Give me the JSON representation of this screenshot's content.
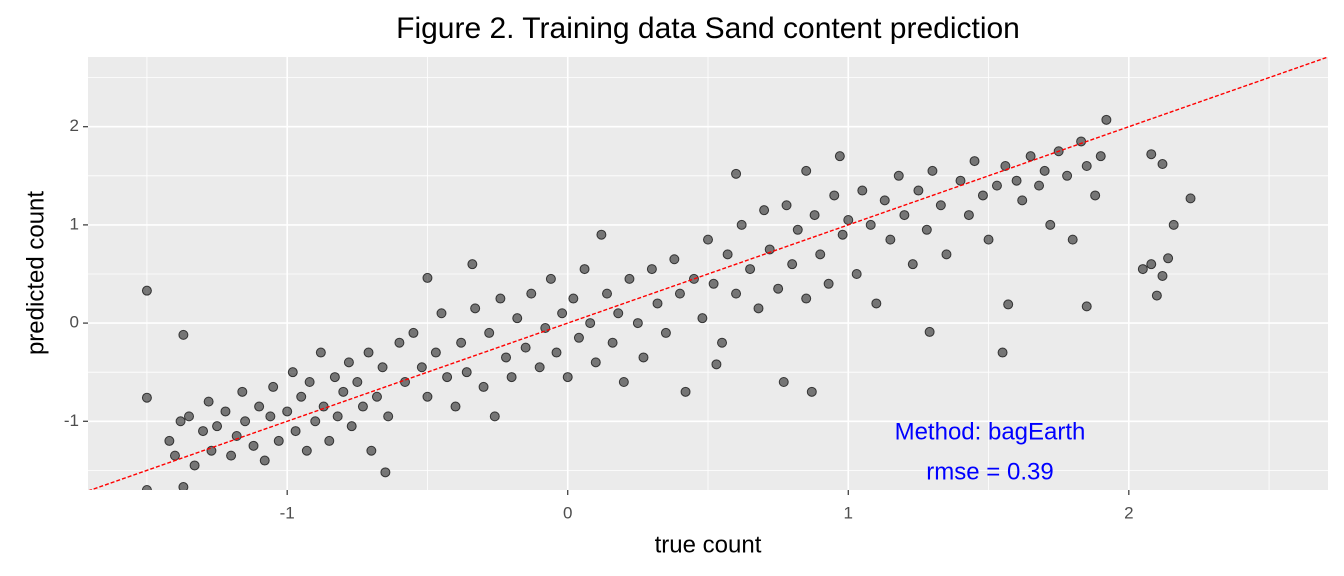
{
  "chart_data": {
    "type": "scatter",
    "title": "Figure 2.  Training data Sand content prediction",
    "xlabel": "true count",
    "ylabel": "predicted count",
    "xlim": [
      -1.71,
      2.71
    ],
    "ylim": [
      -1.7,
      2.71
    ],
    "xticks": [
      -1,
      0,
      1,
      2
    ],
    "yticks": [
      -1,
      0,
      1,
      2
    ],
    "x_minor_grid": [
      -1.5,
      -0.5,
      0.5,
      1.5,
      2.5
    ],
    "y_minor_grid": [
      -1.5,
      -0.5,
      0.5,
      1.5,
      2.5
    ],
    "grid": true,
    "color": "#000000",
    "reference_line": {
      "slope": 1,
      "intercept": 0,
      "color": "#ff0000"
    },
    "annotations": [
      "Method: bagEarth",
      "rmse = 0.39"
    ],
    "annotation_color": "#0000ff",
    "x": [
      -1.42,
      -1.4,
      -1.38,
      -1.35,
      -1.33,
      -1.3,
      -1.28,
      -1.27,
      -1.25,
      -1.22,
      -1.2,
      -1.18,
      -1.16,
      -1.15,
      -1.12,
      -1.1,
      -1.08,
      -1.06,
      -1.05,
      -1.03,
      -1.0,
      -0.98,
      -0.97,
      -0.95,
      -0.93,
      -0.92,
      -0.9,
      -0.88,
      -0.87,
      -0.85,
      -0.83,
      -0.82,
      -0.8,
      -0.78,
      -0.77,
      -0.75,
      -0.73,
      -0.71,
      -0.7,
      -0.68,
      -0.66,
      -0.64,
      -0.6,
      -0.58,
      -0.55,
      -0.52,
      -0.5,
      -0.47,
      -0.45,
      -0.43,
      -0.4,
      -0.38,
      -0.36,
      -0.33,
      -0.3,
      -0.28,
      -0.26,
      -0.24,
      -0.22,
      -0.2,
      -0.18,
      -0.15,
      -0.13,
      -0.1,
      -0.08,
      -0.06,
      -0.04,
      -0.02,
      0.0,
      0.02,
      0.04,
      0.06,
      0.08,
      0.1,
      0.12,
      0.14,
      0.16,
      0.18,
      0.2,
      0.22,
      0.25,
      0.27,
      0.3,
      0.32,
      0.35,
      0.38,
      0.4,
      0.42,
      0.45,
      0.48,
      0.5,
      0.52,
      0.55,
      0.57,
      0.6,
      0.62,
      0.65,
      0.68,
      0.7,
      0.72,
      0.75,
      0.78,
      0.8,
      0.82,
      0.85,
      0.88,
      0.9,
      0.93,
      0.95,
      0.98,
      1.0,
      1.03,
      1.05,
      1.08,
      1.1,
      1.13,
      1.15,
      1.18,
      1.2,
      1.23,
      1.25,
      1.28,
      1.3,
      1.33,
      1.35,
      1.4,
      1.43,
      1.45,
      1.48,
      1.5,
      1.53,
      1.56,
      1.6,
      1.62,
      1.65,
      1.68,
      1.7,
      1.72,
      1.75,
      1.78,
      1.8,
      1.83,
      1.85,
      1.88,
      1.9,
      -1.5,
      -1.5,
      -1.5,
      -1.37,
      -1.37,
      -0.65,
      0.6,
      0.85,
      0.97,
      1.92,
      2.08,
      2.12,
      2.22,
      2.16,
      2.05,
      2.1,
      2.12,
      2.08,
      2.14,
      1.55,
      1.85,
      1.29,
      1.57,
      0.77,
      0.87,
      0.53,
      -0.34,
      -0.5
    ],
    "values": [
      -1.2,
      -1.35,
      -1.0,
      -0.95,
      -1.45,
      -1.1,
      -0.8,
      -1.3,
      -1.05,
      -0.9,
      -1.35,
      -1.15,
      -0.7,
      -1.0,
      -1.25,
      -0.85,
      -1.4,
      -0.95,
      -0.65,
      -1.2,
      -0.9,
      -0.5,
      -1.1,
      -0.75,
      -1.3,
      -0.6,
      -1.0,
      -0.3,
      -0.85,
      -1.2,
      -0.55,
      -0.95,
      -0.7,
      -0.4,
      -1.05,
      -0.6,
      -0.85,
      -0.3,
      -1.3,
      -0.75,
      -0.45,
      -0.95,
      -0.2,
      -0.6,
      -0.1,
      -0.45,
      -0.75,
      -0.3,
      0.1,
      -0.55,
      -0.85,
      -0.2,
      -0.5,
      0.15,
      -0.65,
      -0.1,
      -0.95,
      0.25,
      -0.35,
      -0.55,
      0.05,
      -0.25,
      0.3,
      -0.45,
      -0.05,
      0.45,
      -0.3,
      0.1,
      -0.55,
      0.25,
      -0.15,
      0.55,
      0.0,
      -0.4,
      0.9,
      0.3,
      -0.2,
      0.1,
      -0.6,
      0.45,
      0.0,
      -0.35,
      0.55,
      0.2,
      -0.1,
      0.65,
      0.3,
      -0.7,
      0.45,
      0.05,
      0.85,
      0.4,
      -0.2,
      0.7,
      0.3,
      1.0,
      0.55,
      0.15,
      1.15,
      0.75,
      0.35,
      1.2,
      0.6,
      0.95,
      0.25,
      1.1,
      0.7,
      0.4,
      1.3,
      0.9,
      1.05,
      0.5,
      1.35,
      1.0,
      0.2,
      1.25,
      0.85,
      1.5,
      1.1,
      0.6,
      1.35,
      0.95,
      1.55,
      1.2,
      0.7,
      1.45,
      1.1,
      1.65,
      1.3,
      0.85,
      1.4,
      1.6,
      1.45,
      1.25,
      1.7,
      1.4,
      1.55,
      1.0,
      1.75,
      1.5,
      0.85,
      1.85,
      1.6,
      1.3,
      1.7,
      0.33,
      -0.76,
      -1.7,
      -0.12,
      -1.67,
      -1.52,
      1.52,
      1.55,
      1.7,
      2.07,
      1.72,
      1.62,
      1.27,
      1.0,
      0.55,
      0.28,
      0.48,
      0.6,
      0.66,
      -0.3,
      0.17,
      -0.09,
      0.19,
      -0.6,
      -0.7,
      -0.42,
      0.6,
      0.46
    ]
  }
}
